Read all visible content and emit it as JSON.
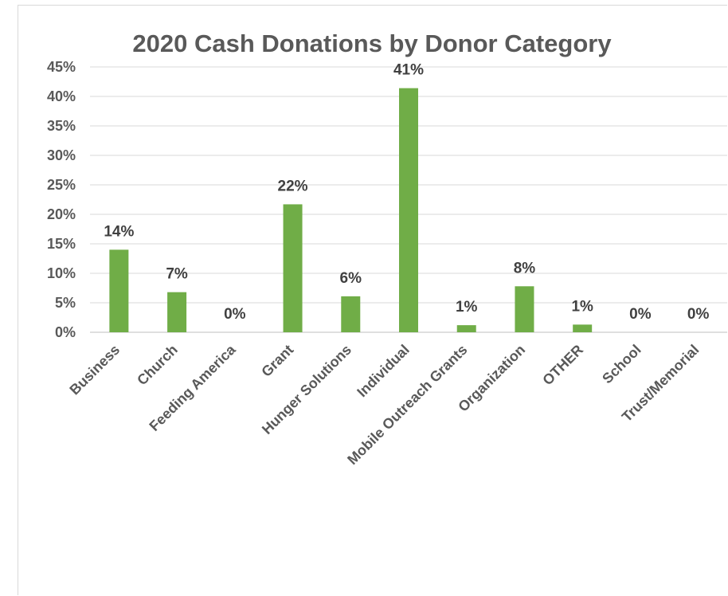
{
  "chart_data": {
    "type": "bar",
    "title": "2020 Cash Donations by Donor Category",
    "xlabel": "",
    "ylabel": "",
    "categories": [
      "Business",
      "Church",
      "Feeding America",
      "Grant",
      "Hunger Solutions",
      "Individual",
      "Mobile Outreach Grants",
      "Organization",
      "OTHER",
      "School",
      "Trust/Memorial"
    ],
    "values": [
      14.0,
      6.8,
      0,
      21.7,
      6.1,
      41.4,
      1.2,
      7.8,
      1.3,
      0,
      0
    ],
    "data_labels": [
      "14%",
      "7%",
      "0%",
      "22%",
      "6%",
      "41%",
      "1%",
      "8%",
      "1%",
      "0%",
      "0%"
    ],
    "ylim": [
      0,
      45
    ],
    "yticks": [
      0,
      5,
      10,
      15,
      20,
      25,
      30,
      35,
      40,
      45
    ],
    "ytick_labels": [
      "0%",
      "5%",
      "10%",
      "15%",
      "20%",
      "25%",
      "30%",
      "35%",
      "40%",
      "45%"
    ],
    "grid": true,
    "legend": "none",
    "bar_color": "#70ad47"
  }
}
